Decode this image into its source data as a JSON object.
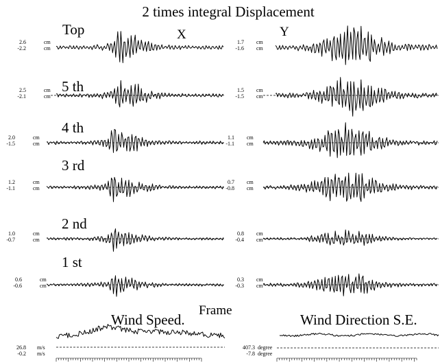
{
  "title": "2 times integral Displacement",
  "x_label": "X",
  "y_label": "Y",
  "frame_label": "Frame",
  "rows": [
    {
      "label": "Top",
      "x_max": "2.6",
      "x_min": "-2.2",
      "x_unit": "cm",
      "y_max": "1.7",
      "y_min": "-1.6",
      "y_unit": "cm"
    },
    {
      "label": "5 th",
      "x_max": "2.5",
      "x_min": "-2.1",
      "x_unit": "cm",
      "y_max": "1.5",
      "y_min": "-1.5",
      "y_unit": "cm"
    },
    {
      "label": "4 th",
      "x_max": "2.0",
      "x_min": "-1.5",
      "x_unit": "cm",
      "y_max": "1.1",
      "y_min": "-1.1",
      "y_unit": "cm"
    },
    {
      "label": "3 rd",
      "x_max": "1.2",
      "x_min": "-1.1",
      "x_unit": "cm",
      "y_max": "0.7",
      "y_min": "-0.8",
      "y_unit": "cm"
    },
    {
      "label": "2 nd",
      "x_max": "1.0",
      "x_min": "-0.7",
      "x_unit": "cm",
      "y_max": "0.8",
      "y_min": "-0.4",
      "y_unit": "cm"
    },
    {
      "label": "1 st",
      "x_max": "0.6",
      "x_min": "-0.6",
      "x_unit": "cm",
      "y_max": "0.3",
      "y_min": "-0.3",
      "y_unit": "cm"
    }
  ],
  "wind": [
    {
      "label": "Wind Speed.",
      "max": "26.8",
      "min": "-0.2",
      "unit": "m/s"
    },
    {
      "label": "Wind Direction  S.E.",
      "max": "407.3",
      "min": "-7.8",
      "unit": "degree"
    }
  ],
  "chart_data": {
    "type": "line",
    "title": "2 times integral Displacement",
    "panels": [
      "X",
      "Y"
    ],
    "series": [
      {
        "name": "Top",
        "x_range_cm": [
          -2.2,
          2.6
        ],
        "y_range_cm": [
          -1.6,
          1.7
        ]
      },
      {
        "name": "5 th",
        "x_range_cm": [
          -2.1,
          2.5
        ],
        "y_range_cm": [
          -1.5,
          1.5
        ]
      },
      {
        "name": "4 th",
        "x_range_cm": [
          -1.5,
          2.0
        ],
        "y_range_cm": [
          -1.1,
          1.1
        ]
      },
      {
        "name": "3 rd",
        "x_range_cm": [
          -1.1,
          1.2
        ],
        "y_range_cm": [
          -0.8,
          0.7
        ]
      },
      {
        "name": "2 nd",
        "x_range_cm": [
          -0.7,
          1.0
        ],
        "y_range_cm": [
          -0.4,
          0.8
        ]
      },
      {
        "name": "1 st",
        "x_range_cm": [
          -0.6,
          0.6
        ],
        "y_range_cm": [
          -0.3,
          0.3
        ]
      },
      {
        "name": "Wind Speed.",
        "range_m_s": [
          -0.2,
          26.8
        ]
      },
      {
        "name": "Wind Direction  S.E.",
        "range_degree": [
          -7.8,
          407.3
        ]
      }
    ]
  }
}
